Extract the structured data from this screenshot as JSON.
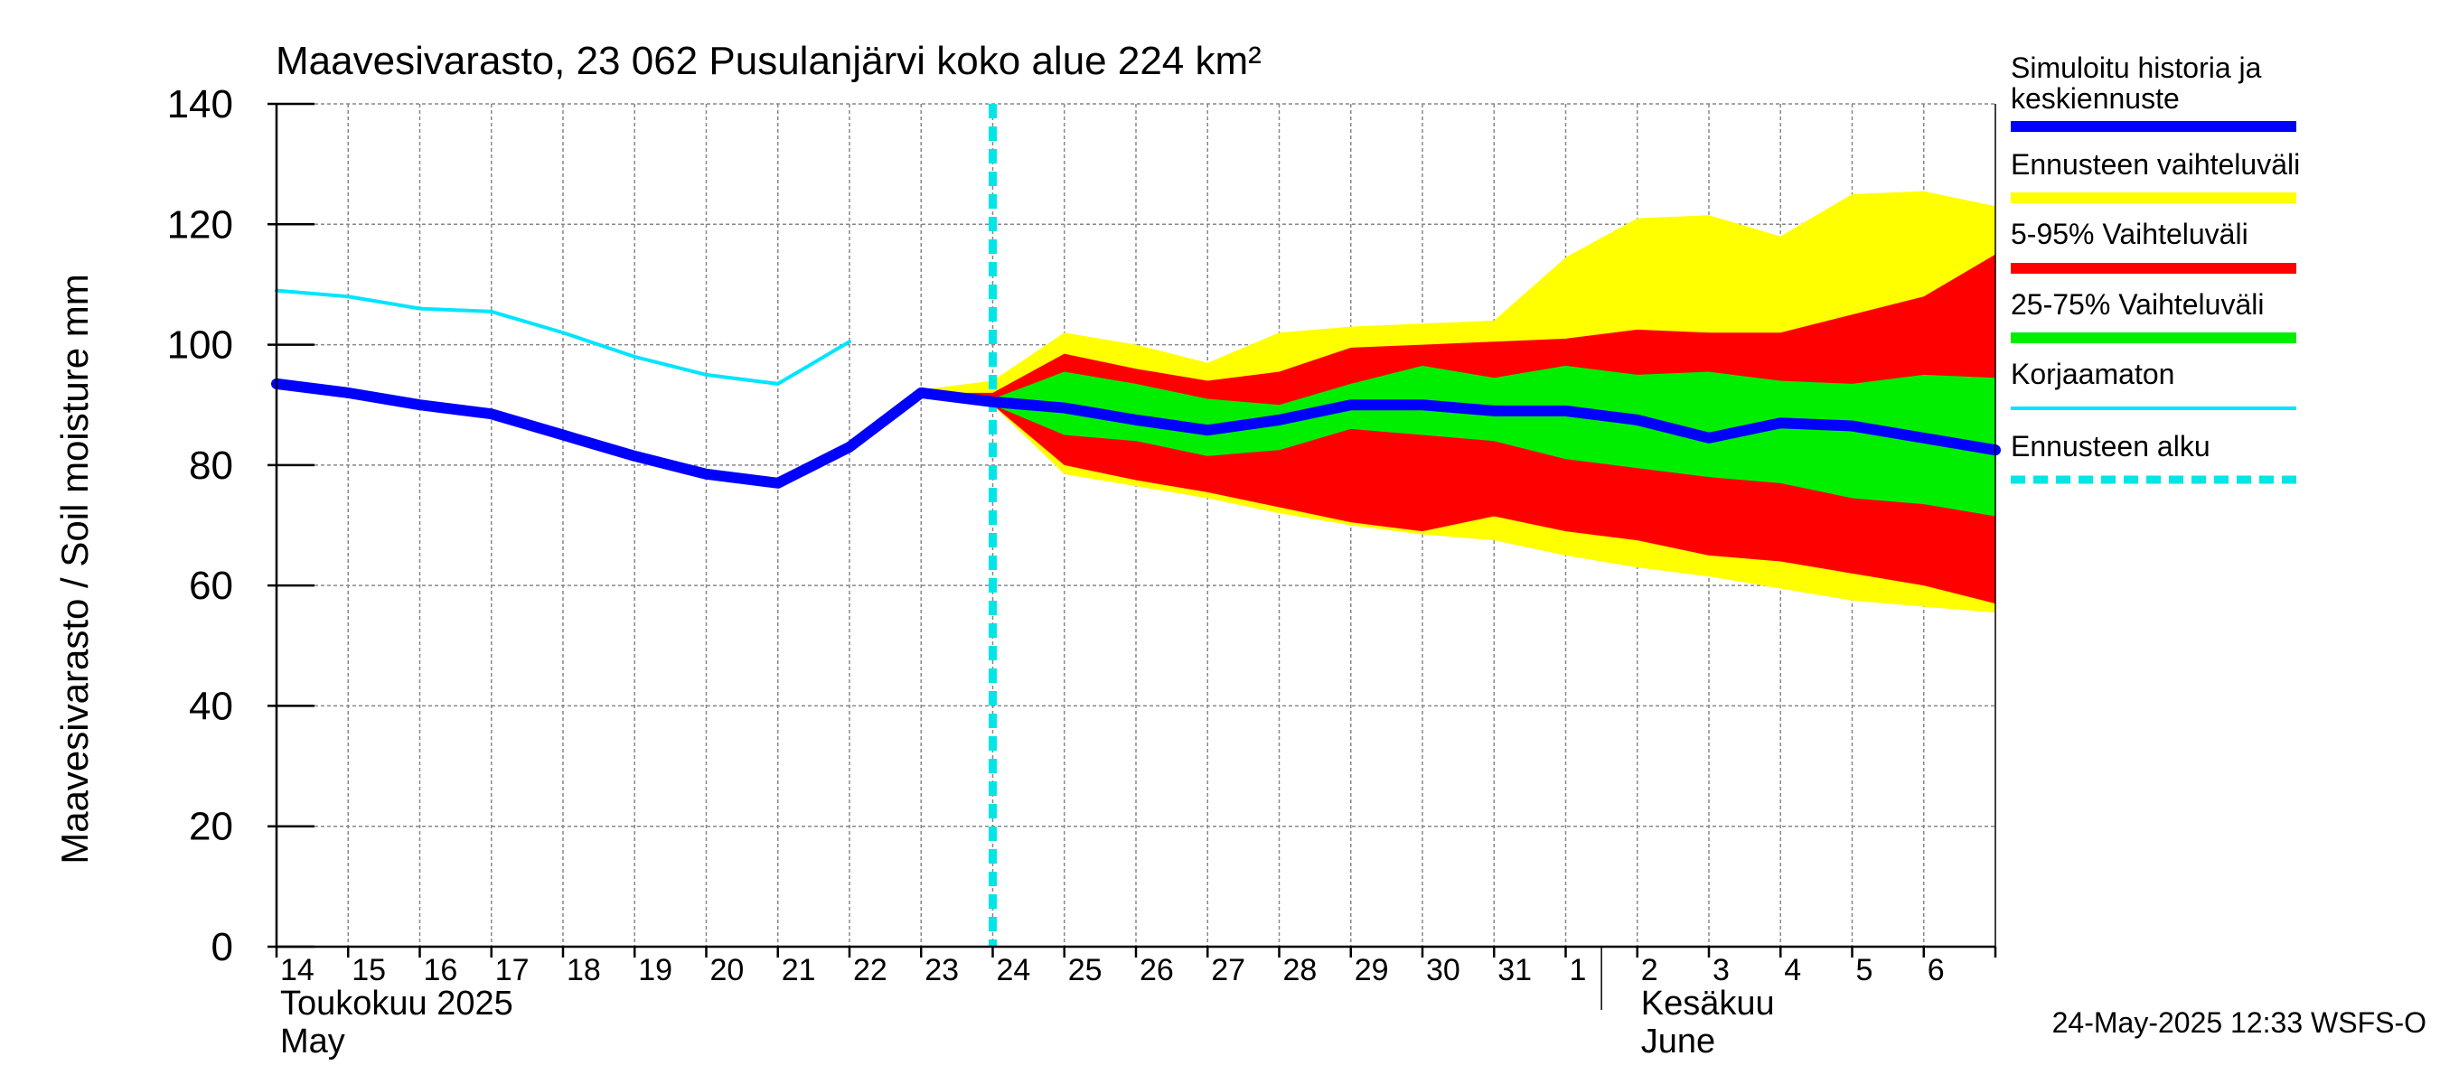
{
  "chart_data": {
    "type": "area",
    "title": "Maavesivarasto, 23 062 Pusulanjärvi koko alue 224 km²",
    "ylabel": "Maavesivarasto / Soil moisture   mm",
    "ylim": [
      0,
      140
    ],
    "yticks": [
      0,
      20,
      40,
      60,
      80,
      100,
      120,
      140
    ],
    "x_day_range": [
      0,
      24
    ],
    "xtick_labels": [
      "14",
      "15",
      "16",
      "17",
      "18",
      "19",
      "20",
      "21",
      "22",
      "23",
      "24",
      "25",
      "26",
      "27",
      "28",
      "29",
      "30",
      "31",
      "1",
      "2",
      "3",
      "4",
      "5",
      "6"
    ],
    "month_labels": [
      {
        "line1": "Toukokuu  2025",
        "line2": "May"
      },
      {
        "line1": "Kesäkuu",
        "line2": "June"
      }
    ],
    "month_boundary_day": 18.5,
    "forecast_start_day": 10,
    "timestamp": "24-May-2025 12:33 WSFS-O",
    "series": {
      "simulated": {
        "name": "Simuloitu historia ja keskiennuste",
        "color": "#0000ff",
        "x": [
          0,
          1,
          2,
          3,
          4,
          5,
          6,
          7,
          8,
          9,
          10,
          11,
          12,
          13,
          14,
          15,
          16,
          17,
          18,
          19,
          20,
          21,
          22,
          23,
          24
        ],
        "values": [
          93.5,
          92,
          90,
          88.5,
          85,
          81.5,
          78.5,
          77,
          83,
          92,
          90.5,
          89.5,
          87.5,
          85.8,
          87.5,
          90,
          90,
          89,
          89,
          87.5,
          84.5,
          87,
          86.5,
          84.5,
          82.5
        ]
      },
      "uncorrected": {
        "name": "Korjaamaton",
        "color": "#00e5ff",
        "x": [
          0,
          1,
          2,
          3,
          4,
          5,
          6,
          7,
          8
        ],
        "values": [
          109,
          108,
          106,
          105.5,
          102,
          98,
          95,
          93.5,
          100.5
        ]
      },
      "full_range": {
        "name": "Ennusteen vaihteluväli",
        "color": "#ffff00",
        "x": [
          9,
          10,
          11,
          12,
          13,
          14,
          15,
          16,
          17,
          18,
          19,
          20,
          21,
          22,
          23,
          24
        ],
        "upper": [
          92.5,
          94,
          102,
          100,
          97,
          102,
          103,
          103.5,
          104,
          114.5,
          121,
          121.5,
          118,
          125,
          125.5,
          123
        ],
        "lower": [
          92,
          90,
          78.5,
          76.5,
          74.5,
          72,
          70,
          68.5,
          67.5,
          65,
          63,
          61.5,
          59.5,
          57.5,
          56.5,
          55.5
        ]
      },
      "p5_95": {
        "name": "5-95% Vaihteluväli",
        "color": "#ff0000",
        "x": [
          9,
          10,
          11,
          12,
          13,
          14,
          15,
          16,
          17,
          18,
          19,
          20,
          21,
          22,
          23,
          24
        ],
        "upper": [
          92,
          92,
          98.5,
          96,
          94,
          95.5,
          99.5,
          100,
          100.5,
          101,
          102.5,
          102,
          102,
          105,
          108,
          115
        ],
        "lower": [
          92,
          90,
          80,
          77.5,
          75.5,
          73,
          70.5,
          69,
          71.5,
          69,
          67.5,
          65,
          64,
          62,
          60,
          57
        ]
      },
      "p25_75": {
        "name": "25-75% Vaihteluväli",
        "color": "#00ee00",
        "x": [
          10,
          11,
          12,
          13,
          14,
          15,
          16,
          17,
          18,
          19,
          20,
          21,
          22,
          23,
          24
        ],
        "upper": [
          91,
          95.5,
          93.5,
          91,
          90,
          93.5,
          96.5,
          94.5,
          96.5,
          95,
          95.5,
          94,
          93.5,
          95,
          94.5
        ],
        "lower": [
          90,
          85,
          84,
          81.5,
          82.5,
          86,
          85,
          84,
          81,
          79.5,
          78,
          77,
          74.5,
          73.5,
          71.5
        ]
      },
      "forecast_start": {
        "name": "Ennusteen alku",
        "color": "#00e5e5"
      }
    },
    "legend": [
      {
        "label": "Simuloitu historia ja",
        "label2": "keskiennuste",
        "color": "#0000ff",
        "style": "thick"
      },
      {
        "label": "Ennusteen vaihteluväli",
        "color": "#ffff00",
        "style": "thick"
      },
      {
        "label": "5-95% Vaihteluväli",
        "color": "#ff0000",
        "style": "thick"
      },
      {
        "label": "25-75% Vaihteluväli",
        "color": "#00ee00",
        "style": "thick"
      },
      {
        "label": "Korjaamaton",
        "color": "#00e5ff",
        "style": "thin"
      },
      {
        "label": "Ennusteen alku",
        "color": "#00e5e5",
        "style": "dashed"
      }
    ],
    "legend_position": "right"
  }
}
